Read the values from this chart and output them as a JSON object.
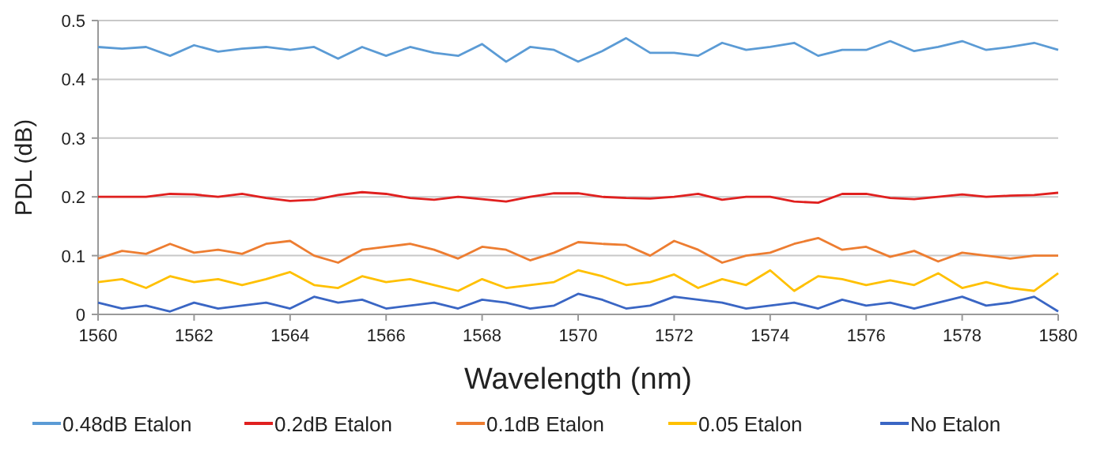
{
  "chart_data": {
    "type": "line",
    "xlabel": "Wavelength (nm)",
    "ylabel": "PDL (dB)",
    "xlim": [
      1560,
      1580
    ],
    "xticks": [
      1560,
      1562,
      1564,
      1566,
      1568,
      1570,
      1572,
      1574,
      1576,
      1578,
      1580
    ],
    "ylim": [
      0,
      0.5
    ],
    "yticks": [
      0,
      0.1,
      0.2,
      0.3,
      0.4,
      0.5
    ],
    "grid": "y",
    "legend": "bottom",
    "marker": "none",
    "line_style": "solid",
    "x": [
      1560,
      1560.5,
      1561,
      1561.5,
      1562,
      1562.5,
      1563,
      1563.5,
      1564,
      1564.5,
      1565,
      1565.5,
      1566,
      1566.5,
      1567,
      1567.5,
      1568,
      1568.5,
      1569,
      1569.5,
      1570,
      1570.5,
      1571,
      1571.5,
      1572,
      1572.5,
      1573,
      1573.5,
      1574,
      1574.5,
      1575,
      1575.5,
      1576,
      1576.5,
      1577,
      1577.5,
      1578,
      1578.5,
      1579,
      1579.5,
      1580
    ],
    "series": [
      {
        "name": "0.48dB Etalon",
        "color": "#5b9bd5",
        "values": [
          0.455,
          0.452,
          0.455,
          0.44,
          0.458,
          0.447,
          0.452,
          0.455,
          0.45,
          0.455,
          0.435,
          0.455,
          0.44,
          0.455,
          0.445,
          0.44,
          0.46,
          0.43,
          0.455,
          0.45,
          0.43,
          0.448,
          0.47,
          0.445,
          0.445,
          0.44,
          0.462,
          0.45,
          0.455,
          0.462,
          0.44,
          0.45,
          0.45,
          0.465,
          0.448,
          0.455,
          0.465,
          0.45,
          0.455,
          0.462,
          0.45
        ]
      },
      {
        "name": "0.2dB Etalon",
        "color": "#e0201f",
        "values": [
          0.2,
          0.2,
          0.2,
          0.205,
          0.204,
          0.2,
          0.205,
          0.198,
          0.193,
          0.195,
          0.203,
          0.208,
          0.205,
          0.198,
          0.195,
          0.2,
          0.196,
          0.192,
          0.2,
          0.206,
          0.206,
          0.2,
          0.198,
          0.197,
          0.2,
          0.205,
          0.195,
          0.2,
          0.2,
          0.192,
          0.19,
          0.205,
          0.205,
          0.198,
          0.196,
          0.2,
          0.204,
          0.2,
          0.202,
          0.203,
          0.207
        ]
      },
      {
        "name": "0.1dB Etalon",
        "color": "#ed7d31",
        "values": [
          0.095,
          0.108,
          0.103,
          0.12,
          0.105,
          0.11,
          0.103,
          0.12,
          0.125,
          0.1,
          0.088,
          0.11,
          0.115,
          0.12,
          0.11,
          0.095,
          0.115,
          0.11,
          0.092,
          0.105,
          0.123,
          0.12,
          0.118,
          0.1,
          0.125,
          0.11,
          0.088,
          0.1,
          0.105,
          0.12,
          0.13,
          0.11,
          0.115,
          0.098,
          0.108,
          0.09,
          0.105,
          0.1,
          0.095,
          0.1,
          0.1
        ]
      },
      {
        "name": "0.05 Etalon",
        "color": "#ffc000",
        "values": [
          0.055,
          0.06,
          0.045,
          0.065,
          0.055,
          0.06,
          0.05,
          0.06,
          0.072,
          0.05,
          0.045,
          0.065,
          0.055,
          0.06,
          0.05,
          0.04,
          0.06,
          0.045,
          0.05,
          0.055,
          0.075,
          0.065,
          0.05,
          0.055,
          0.068,
          0.045,
          0.06,
          0.05,
          0.075,
          0.04,
          0.065,
          0.06,
          0.05,
          0.058,
          0.05,
          0.07,
          0.045,
          0.055,
          0.045,
          0.04,
          0.07
        ]
      },
      {
        "name": "No Etalon",
        "color": "#3a66c4",
        "values": [
          0.02,
          0.01,
          0.015,
          0.005,
          0.02,
          0.01,
          0.015,
          0.02,
          0.01,
          0.03,
          0.02,
          0.025,
          0.01,
          0.015,
          0.02,
          0.01,
          0.025,
          0.02,
          0.01,
          0.015,
          0.035,
          0.025,
          0.01,
          0.015,
          0.03,
          0.025,
          0.02,
          0.01,
          0.015,
          0.02,
          0.01,
          0.025,
          0.015,
          0.02,
          0.01,
          0.02,
          0.03,
          0.015,
          0.02,
          0.03,
          0.005
        ]
      }
    ]
  }
}
